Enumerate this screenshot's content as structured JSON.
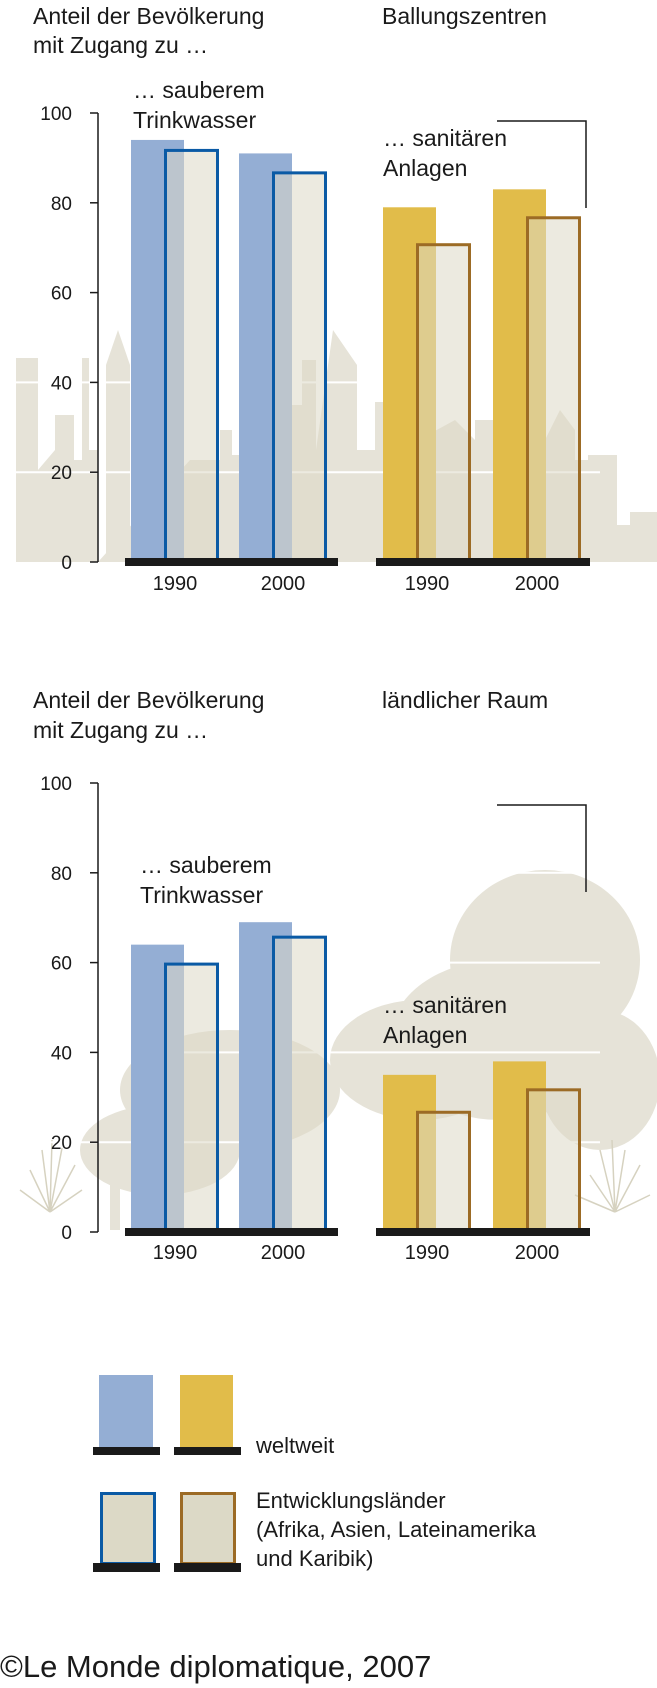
{
  "colors": {
    "water_world": "#94aed4",
    "water_dev_stroke": "#0a5aa5",
    "sanitation_world": "#e1bc4a",
    "sanitation_dev_stroke": "#9c6b25",
    "dev_fill": "#dcd9c6",
    "background_shape": "#e6e3d8",
    "baseline": "#1a1a1a"
  },
  "chart_data": [
    {
      "type": "bar",
      "title_line1": "Anteil der Bevölkerung",
      "title_line2": "mit Zugang zu …",
      "subtitle": "Ballungszentren",
      "ylim": [
        0,
        100
      ],
      "yticks": [
        "0",
        "20",
        "40",
        "60",
        "80",
        "100"
      ],
      "categories": [
        "1990",
        "2000"
      ],
      "groups": [
        {
          "label_line1": "… sauberem",
          "label_line2": "Trinkwasser",
          "series": [
            {
              "name": "weltweit",
              "values": [
                94,
                91
              ]
            },
            {
              "name": "Entwicklungsländer",
              "values": [
                92,
                87
              ]
            }
          ]
        },
        {
          "label_line1": "… sanitären",
          "label_line2": "Anlagen",
          "series": [
            {
              "name": "weltweit",
              "values": [
                79,
                83
              ]
            },
            {
              "name": "Entwicklungsländer",
              "values": [
                71,
                77
              ]
            }
          ]
        }
      ]
    },
    {
      "type": "bar",
      "title_line1": "Anteil der Bevölkerung",
      "title_line2": "mit Zugang zu …",
      "subtitle": "ländlicher Raum",
      "ylim": [
        0,
        100
      ],
      "yticks": [
        "0",
        "20",
        "40",
        "60",
        "80",
        "100"
      ],
      "categories": [
        "1990",
        "2000"
      ],
      "groups": [
        {
          "label_line1": "… sauberem",
          "label_line2": "Trinkwasser",
          "series": [
            {
              "name": "weltweit",
              "values": [
                64,
                69
              ]
            },
            {
              "name": "Entwicklungsländer",
              "values": [
                60,
                66
              ]
            }
          ]
        },
        {
          "label_line1": "… sanitären",
          "label_line2": "Anlagen",
          "series": [
            {
              "name": "weltweit",
              "values": [
                35,
                38
              ]
            },
            {
              "name": "Entwicklungsländer",
              "values": [
                27,
                32
              ]
            }
          ]
        }
      ]
    }
  ],
  "legend": {
    "world_label": "weltweit",
    "dev_label_line1": "Entwicklungsländer",
    "dev_label_line2": "(Afrika, Asien, Lateinamerika",
    "dev_label_line3": "und Karibik)"
  },
  "copyright": "©Le Monde diplomatique, 2007"
}
